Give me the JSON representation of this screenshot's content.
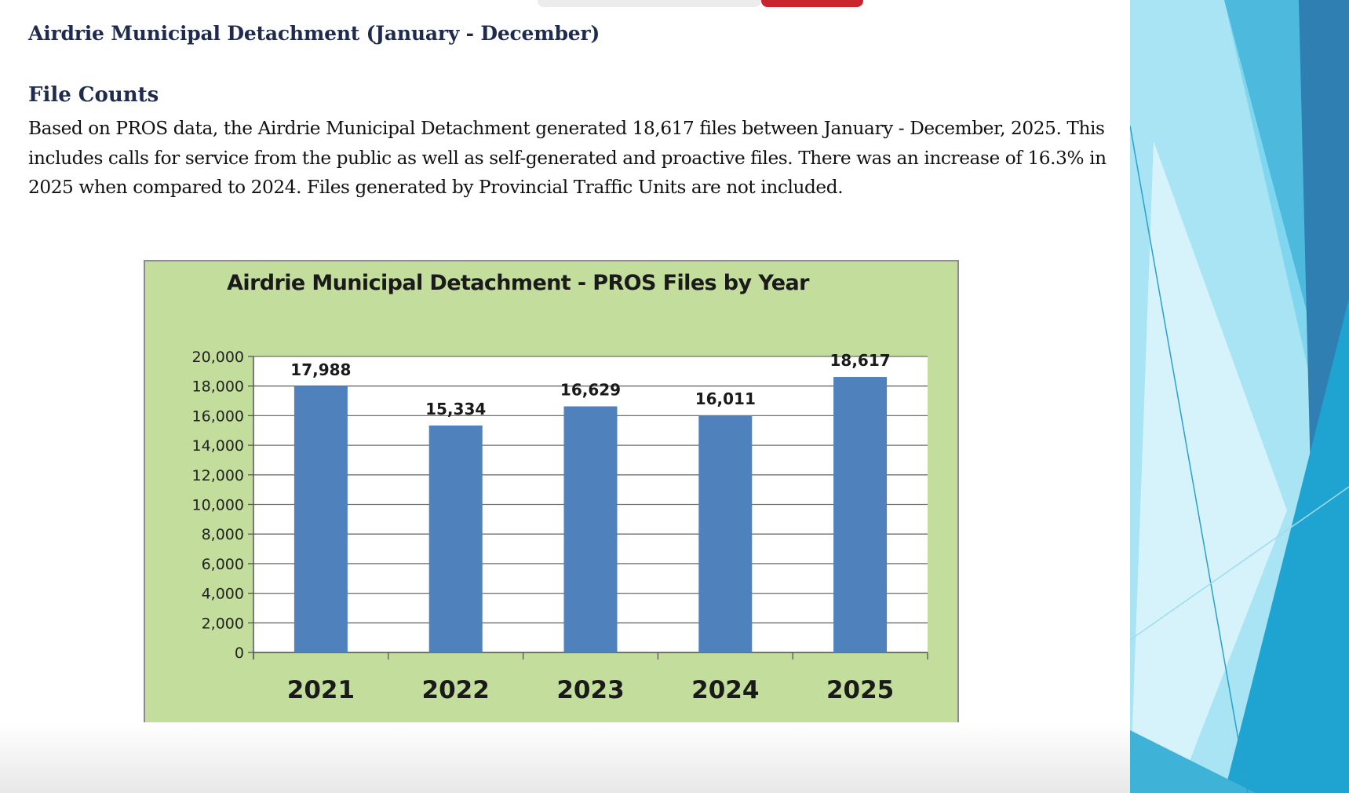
{
  "document": {
    "title": "Airdrie Municipal Detachment (January - December)",
    "section_heading": "File Counts",
    "paragraph": "Based on PROS data, the Airdrie Municipal Detachment generated 18,617 files between January - December, 2025.  This includes calls for service from the public as well as self-generated and proactive files. There was an increase of 16.3% in 2025 when compared to 2024. Files generated by Provincial Traffic Units are not included."
  },
  "chart_data": {
    "type": "bar",
    "title": "Airdrie Municipal Detachment - PROS Files by Year",
    "categories": [
      "2021",
      "2022",
      "2023",
      "2024",
      "2025"
    ],
    "values": [
      17988,
      15334,
      16629,
      16011,
      18617
    ],
    "data_labels": [
      "17,988",
      "15,334",
      "16,629",
      "16,011",
      "18,617"
    ],
    "y_ticks": [
      0,
      2000,
      4000,
      6000,
      8000,
      10000,
      12000,
      14000,
      16000,
      18000,
      20000
    ],
    "y_tick_labels": [
      "0",
      "2,000",
      "4,000",
      "6,000",
      "8,000",
      "10,000",
      "12,000",
      "14,000",
      "16,000",
      "18,000",
      "20,000"
    ],
    "ylim": [
      0,
      20000
    ],
    "grid": true,
    "legend": "none",
    "colors": {
      "bar": "#4f81bd",
      "plot_background": "#ffffff",
      "chart_background": "#c3dd9c",
      "gridline": "#6e6e6e"
    }
  }
}
